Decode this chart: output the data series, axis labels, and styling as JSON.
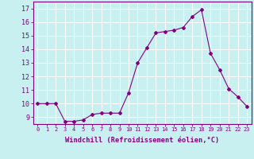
{
  "x": [
    0,
    1,
    2,
    3,
    4,
    5,
    6,
    7,
    8,
    9,
    10,
    11,
    12,
    13,
    14,
    15,
    16,
    17,
    18,
    19,
    20,
    21,
    22,
    23
  ],
  "y": [
    10.0,
    10.0,
    10.0,
    8.7,
    8.7,
    8.8,
    9.2,
    9.3,
    9.3,
    9.3,
    10.8,
    13.0,
    14.1,
    15.2,
    15.3,
    15.4,
    15.6,
    16.4,
    16.9,
    13.7,
    12.5,
    11.1,
    10.5,
    9.8
  ],
  "line_color": "#800080",
  "marker": "D",
  "marker_size": 2.0,
  "bg_color": "#c8f0f0",
  "grid_color": "#ffffff",
  "xlabel": "Windchill (Refroidissement éolien,°C)",
  "xlabel_color": "#800080",
  "ylabel_ticks": [
    9,
    10,
    11,
    12,
    13,
    14,
    15,
    16,
    17
  ],
  "xlim": [
    -0.5,
    23.5
  ],
  "ylim": [
    8.5,
    17.5
  ],
  "tick_color": "#800080",
  "spine_color": "#800080",
  "xtick_fontsize": 5.0,
  "ytick_fontsize": 6.0,
  "xlabel_fontsize": 6.2
}
